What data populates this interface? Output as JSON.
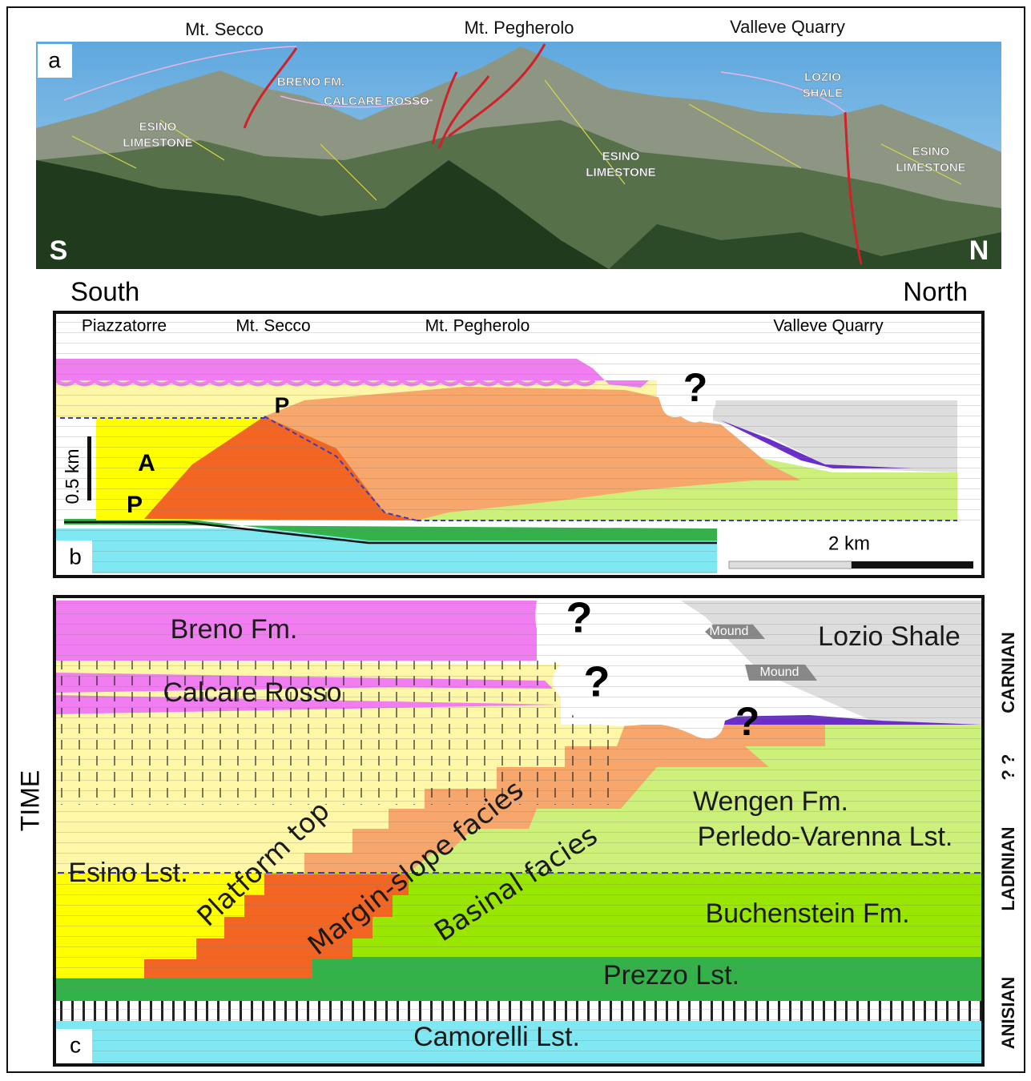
{
  "panel_a": {
    "label": "a",
    "locations": [
      "Mt. Secco",
      "Mt. Pegherolo",
      "Valleve Quarry"
    ],
    "unit_labels": [
      [
        "ESINO",
        "LIMESTONE"
      ],
      [
        "BRENO FM."
      ],
      [
        "CALCARE ROSSO"
      ],
      [
        "ESINO",
        "LIMESTONE"
      ],
      [
        "LOZIO",
        "SHALE"
      ],
      [
        "ESINO",
        "LIMESTONE"
      ]
    ],
    "compass": [
      "S",
      "N"
    ]
  },
  "panel_b": {
    "label": "b",
    "ends": [
      "South",
      "North"
    ],
    "locations": [
      "Piazzatorre",
      "Mt. Secco",
      "Mt. Pegherolo",
      "Valleve Quarry"
    ],
    "unknown": "?",
    "points": [
      "P",
      "A",
      "P"
    ],
    "vertical_scale": "0.5 km",
    "horizontal_scale": "2 km"
  },
  "panel_c": {
    "label": "c",
    "axis": "TIME",
    "units": [
      "Breno Fm.",
      "Lozio Shale",
      "Mound",
      "Mound",
      "Calcare Rosso",
      "Wengen Fm.",
      "Perledo-Varenna Lst.",
      "Esino Lst.",
      "Buchenstein Fm.",
      "Prezzo Lst.",
      "Camorelli Lst."
    ],
    "facies": [
      "Platform top",
      "Margin-slope facies",
      "Basinal facies"
    ],
    "unknowns": [
      "?",
      "?",
      "?"
    ],
    "stages": [
      "CARNIAN",
      "? ?",
      "LADINIAN",
      "ANISIAN"
    ]
  }
}
